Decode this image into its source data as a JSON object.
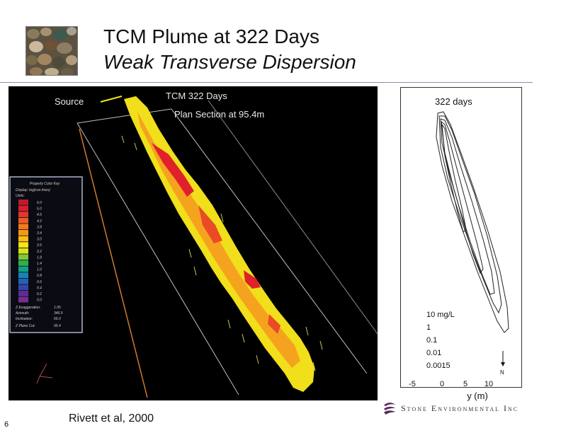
{
  "slide": {
    "title": "TCM Plume at 322 Days",
    "subtitle": "Weak Transverse Dispersion",
    "caption": "Rivett et al, 2000",
    "page_number": "6",
    "company": "Stone Environmental Inc",
    "company_logo_icon": "swirl-logo-icon",
    "colors": {
      "rule": "#8a8fa8",
      "plume_core": "#e0202a",
      "plume_edge": "#f2e21b",
      "panel_bg": "#000000"
    }
  },
  "simulation": {
    "source_label": "Source",
    "title_line1": "TCM 322 Days",
    "title_line2": "Plan Section at 95.4m",
    "legend": {
      "heading": "Property Color Key",
      "display": "Display: log(con.fixes)",
      "units": "Units:",
      "values": [
        "6.0",
        "5.0",
        "4.5",
        "4.2",
        "3.8",
        "3.4",
        "3.0",
        "2.6",
        "2.2",
        "1.8",
        "1.4",
        "1.0",
        "0.8",
        "0.6",
        "0.4",
        "0.2",
        "0.0"
      ],
      "colors": [
        "#c01a2a",
        "#d62030",
        "#e2382c",
        "#ee5a24",
        "#f37a1e",
        "#f79a18",
        "#fbbd14",
        "#fbe01a",
        "#d8e21c",
        "#7cc83a",
        "#2fae4e",
        "#14a088",
        "#1684b4",
        "#2462b8",
        "#3a44a8",
        "#5a2e96",
        "#7a2c8e"
      ],
      "z_exaggeration_label": "Z Exaggeration:",
      "z_exaggeration_value": "1.05",
      "azimuth_label": "Azimuth:",
      "azimuth_value": "346.5",
      "inclination_label": "Inclination:",
      "inclination_value": "65.0",
      "z_plane_cut_label": "Z Plane Cut:",
      "z_plane_cut_value": "95.4"
    }
  },
  "contour": {
    "title": "322 days",
    "levels": [
      "10 mg/L",
      "1",
      "0.1",
      "0.01",
      "0.0015"
    ],
    "north_label": "N",
    "ticks": [
      "-5",
      "0",
      "5",
      "10"
    ],
    "axis_label": "y (m)"
  }
}
